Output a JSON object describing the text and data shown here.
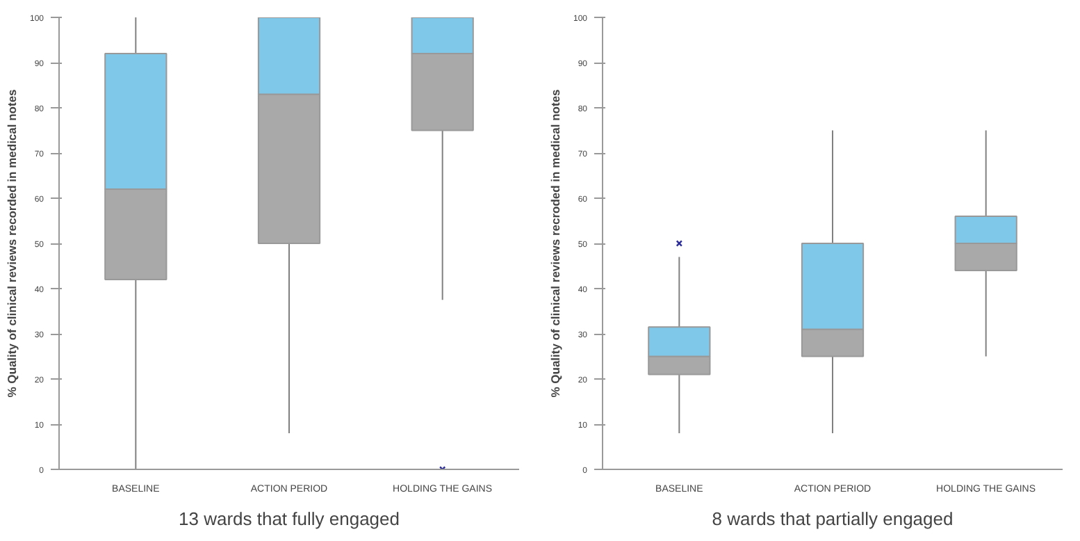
{
  "chart_data": [
    {
      "type": "box",
      "title": "13 wards that fully engaged",
      "ylabel": "% Quality of clinical reviews recorded in medical notes",
      "categories": [
        "BASELINE",
        "ACTION PERIOD",
        "HOLDING THE GAINS"
      ],
      "colors": [
        [
          "#a9a9a9",
          "#7fc8ea"
        ],
        [
          "#a9a9a9",
          "#7fc8ea"
        ],
        [
          "#a9a9a9",
          "#7fc8ea"
        ]
      ],
      "boxes": [
        {
          "low": 0,
          "q1": 42,
          "median": 62,
          "q3": 92,
          "high": 100
        },
        {
          "low": 8,
          "q1": 50,
          "median": 83,
          "q3": 100,
          "high": 100
        },
        {
          "low": 37.5,
          "q1": 75,
          "median": 92,
          "q3": 100,
          "high": 100,
          "outliers": [
            0
          ]
        }
      ],
      "ylim": [
        0,
        100
      ],
      "yticks": [
        0,
        10,
        20,
        30,
        40,
        50,
        60,
        70,
        80,
        90,
        100
      ],
      "grid": false,
      "marker": "cross"
    },
    {
      "type": "box",
      "title": "8 wards that partially engaged",
      "ylabel": "% Quality of clinical reviews recroded in medical notes",
      "categories": [
        "BASELINE",
        "ACTION PERIOD",
        "HOLDING THE GAINS"
      ],
      "colors": [
        [
          "#a9a9a9",
          "#7fc8ea"
        ],
        [
          "#a9a9a9",
          "#7fc8ea"
        ],
        [
          "#a9a9a9",
          "#7fc8ea"
        ]
      ],
      "boxes": [
        {
          "low": 8,
          "q1": 21,
          "median": 25,
          "q3": 31.5,
          "high": 47,
          "outliers": [
            50
          ]
        },
        {
          "low": 8,
          "q1": 25,
          "median": 31,
          "q3": 50,
          "high": 75
        },
        {
          "low": 25,
          "q1": 44,
          "median": 50,
          "q3": 56,
          "high": 75
        }
      ],
      "ylim": [
        0,
        100
      ],
      "yticks": [
        0,
        10,
        20,
        30,
        40,
        50,
        60,
        70,
        80,
        90,
        100
      ],
      "grid": false,
      "marker": "cross"
    }
  ]
}
